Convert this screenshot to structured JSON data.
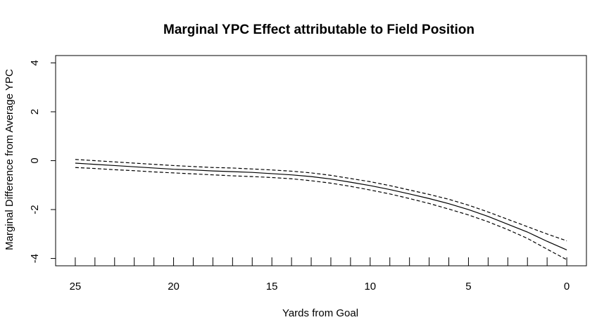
{
  "chart_data": {
    "type": "line",
    "title": "Marginal YPC Effect attributable to Field Position",
    "xlabel": "Yards from Goal",
    "ylabel": "Marginal Difference from Average YPC",
    "xlim": [
      26,
      -1
    ],
    "ylim": [
      -4.3,
      4.3
    ],
    "x_reversed": true,
    "x_ticks": [
      25,
      20,
      15,
      10,
      5,
      0
    ],
    "x_tick_labels": [
      "25",
      "20",
      "15",
      "10",
      "5",
      "0"
    ],
    "y_ticks": [
      4,
      2,
      0,
      -2,
      -4
    ],
    "y_tick_labels": [
      "4",
      "2",
      "0",
      "-2",
      "-4"
    ],
    "rug_ticks": [
      25,
      24,
      23,
      22,
      21,
      20,
      19,
      18,
      17,
      16,
      15,
      14,
      13,
      12,
      11,
      10,
      9,
      8,
      7,
      6,
      5,
      4,
      3,
      2,
      1,
      0
    ],
    "grid": false,
    "x": [
      25,
      24,
      23,
      22,
      21,
      20,
      19,
      18,
      17,
      16,
      15,
      14,
      13,
      12,
      11,
      10,
      9,
      8,
      7,
      6,
      5,
      4,
      3,
      2,
      1,
      0
    ],
    "series": [
      {
        "style": "solid",
        "color": "#000000",
        "values": [
          -0.1,
          -0.15,
          -0.2,
          -0.25,
          -0.3,
          -0.35,
          -0.38,
          -0.42,
          -0.45,
          -0.48,
          -0.53,
          -0.58,
          -0.65,
          -0.75,
          -0.88,
          -1.02,
          -1.18,
          -1.36,
          -1.55,
          -1.76,
          -2.0,
          -2.28,
          -2.6,
          -2.92,
          -3.3,
          -3.65
        ]
      },
      {
        "style": "dashed",
        "color": "#000000",
        "values": [
          0.05,
          0.0,
          -0.05,
          -0.1,
          -0.15,
          -0.2,
          -0.24,
          -0.28,
          -0.3,
          -0.34,
          -0.38,
          -0.43,
          -0.5,
          -0.6,
          -0.73,
          -0.86,
          -1.02,
          -1.2,
          -1.38,
          -1.58,
          -1.82,
          -2.1,
          -2.4,
          -2.7,
          -3.0,
          -3.28
        ]
      },
      {
        "style": "dashed",
        "color": "#000000",
        "values": [
          -0.28,
          -0.32,
          -0.37,
          -0.41,
          -0.46,
          -0.5,
          -0.54,
          -0.58,
          -0.62,
          -0.65,
          -0.69,
          -0.74,
          -0.82,
          -0.92,
          -1.05,
          -1.2,
          -1.36,
          -1.55,
          -1.75,
          -1.98,
          -2.22,
          -2.5,
          -2.82,
          -3.18,
          -3.62,
          -4.05
        ]
      }
    ]
  }
}
